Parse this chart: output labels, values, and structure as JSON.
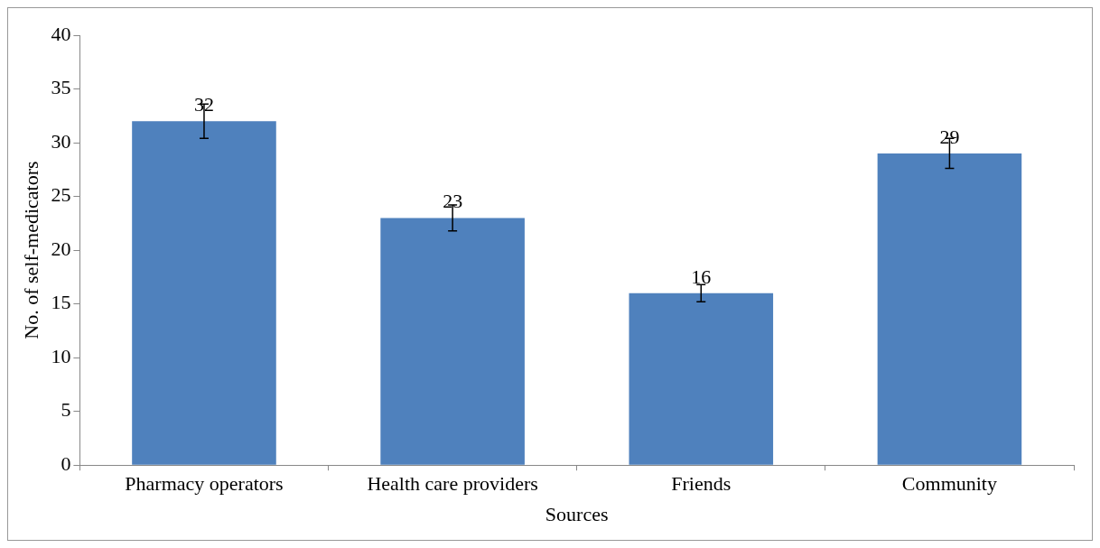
{
  "chart_data": {
    "type": "bar",
    "xlabel": "Sources",
    "ylabel": "No. of self-medicators",
    "categories": [
      "Pharmacy operators",
      "Health care providers",
      "Friends",
      "Community"
    ],
    "values": [
      32,
      23,
      16,
      29
    ],
    "errors": [
      1.6,
      1.2,
      0.8,
      1.4
    ],
    "color": "#4f81bd",
    "ylim": [
      0,
      40
    ],
    "yticks": [
      0,
      5,
      10,
      15,
      20,
      25,
      30,
      35,
      40
    ],
    "grid": false,
    "legend": false,
    "data_labels": true
  }
}
